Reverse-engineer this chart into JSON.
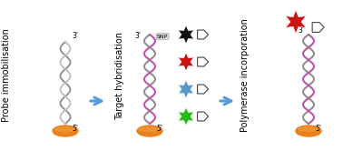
{
  "bg_color": "#ffffff",
  "title_fontsize": 7.0,
  "step1_label": "Probe immobilisation",
  "step2_label": "Target hybridisation",
  "step3_label": "Polymerase incorporation",
  "electrode_color": "#E8821E",
  "electrode_dark": "#C06010",
  "star_black": "#111111",
  "star_red": "#CC1111",
  "star_blue": "#5599CC",
  "star_green": "#22BB11",
  "snp_label": "SNP",
  "prime3": "3'",
  "prime5": "5'",
  "arrow_color": "#5599DD",
  "dna1_color": "#BB55AA",
  "dna2_color": "#909090",
  "ss1_color": "#909090",
  "ss2_color": "#c0c0c0"
}
